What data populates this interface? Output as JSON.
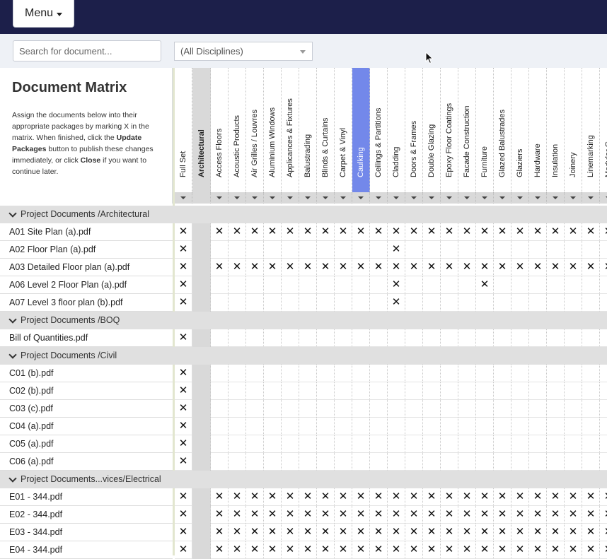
{
  "menu": {
    "label": "Menu"
  },
  "search": {
    "placeholder": "Search for document..."
  },
  "discipline_filter": {
    "selected": "(All Disciplines)"
  },
  "page": {
    "title": "Document Matrix",
    "desc_1": "Assign the documents below into their appropriate packages by marking X in the matrix. When finished, click the ",
    "desc_update": "Update Packages",
    "desc_2": " button to publish these changes immediately, or click ",
    "desc_close": "Close",
    "desc_3": " if you want to continue later."
  },
  "columns": [
    "Full Set",
    "Architectural",
    "Access Floors",
    "Acoustic Products",
    "Air Grilles / Louvres",
    "Aluminium Windows",
    "Applicances & Fixtures",
    "Balustrading",
    "Blinds & Curtains",
    "Carpet & Vinyl",
    "Caulking",
    "Ceilings & Partitions",
    "Cladding",
    "Doors & Frames",
    "Double Glazing",
    "Epoxy Floor Coatings",
    "Facade Construction",
    "Furniture",
    "Glazed Balustrades",
    "Glaziers",
    "Hardware",
    "Insulation",
    "Joinery",
    "Linemarking",
    "Modular C..."
  ],
  "selected_column": "Caulking",
  "mark": "✕",
  "rows": [
    {
      "type": "group",
      "label": "Project Documents /Architectural"
    },
    {
      "type": "doc",
      "label": "A01 Site Plan (a).pdf",
      "marks": "all"
    },
    {
      "type": "doc",
      "label": "A02 Floor Plan (a).pdf",
      "marks": [
        "Cladding"
      ]
    },
    {
      "type": "doc",
      "label": "A03 Detailed Floor plan (a).pdf",
      "marks": "all"
    },
    {
      "type": "doc",
      "label": "A06 Level 2 Floor Plan (a).pdf",
      "marks": [
        "Cladding",
        "Furniture"
      ]
    },
    {
      "type": "doc",
      "label": "A07 Level 3 floor plan (b).pdf",
      "marks": [
        "Cladding"
      ]
    },
    {
      "type": "group",
      "label": "Project Documents /BOQ"
    },
    {
      "type": "doc",
      "label": "Bill of Quantities.pdf",
      "marks": []
    },
    {
      "type": "group",
      "label": "Project Documents /Civil"
    },
    {
      "type": "doc",
      "label": "C01 (b).pdf",
      "marks": []
    },
    {
      "type": "doc",
      "label": "C02 (b).pdf",
      "marks": []
    },
    {
      "type": "doc",
      "label": "C03 (c).pdf",
      "marks": []
    },
    {
      "type": "doc",
      "label": "C04 (a).pdf",
      "marks": []
    },
    {
      "type": "doc",
      "label": "C05 (a).pdf",
      "marks": []
    },
    {
      "type": "doc",
      "label": "C06 (a).pdf",
      "marks": []
    },
    {
      "type": "group",
      "label": "Project Documents...vices/Electrical"
    },
    {
      "type": "doc",
      "label": "E01 - 344.pdf",
      "marks": "all"
    },
    {
      "type": "doc",
      "label": "E02 - 344.pdf",
      "marks": "all"
    },
    {
      "type": "doc",
      "label": "E03 - 344.pdf",
      "marks": "all"
    },
    {
      "type": "doc",
      "label": "E04 - 344.pdf",
      "marks": "all"
    }
  ],
  "colors": {
    "topbar": "#1c1f4a",
    "selected_column": "#7388ea",
    "group_row": "#e0e0e0",
    "filter_row": "#d9d9d9"
  }
}
